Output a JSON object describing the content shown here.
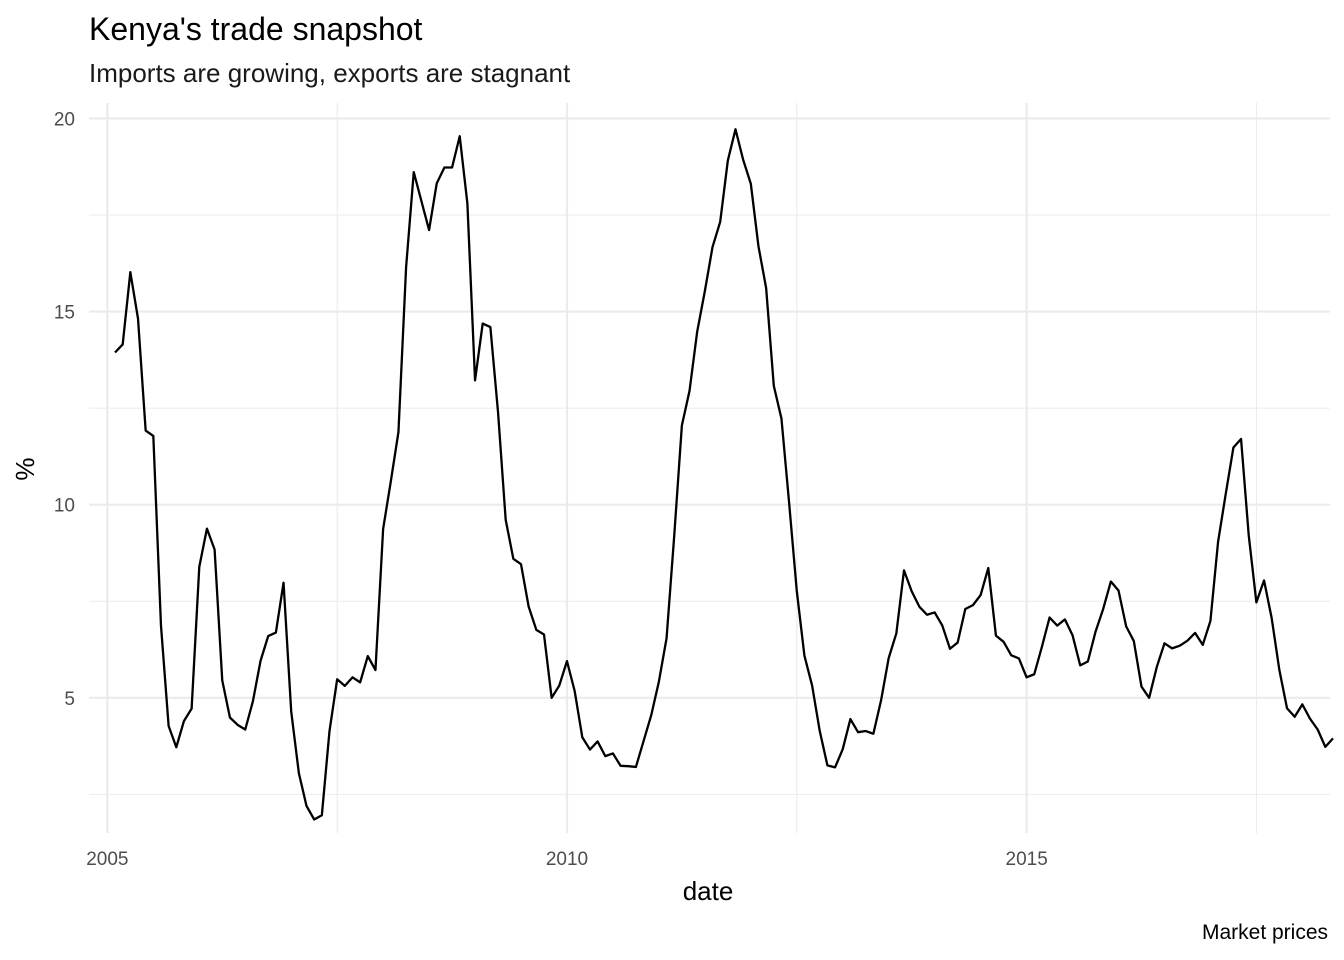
{
  "chart_data": {
    "type": "line",
    "title": "Kenya's trade snapshot",
    "subtitle": "Imports are growing, exports are stagnant",
    "caption": "Market prices",
    "xlabel": "date",
    "ylabel": "%",
    "xlim": [
      2004.8,
      2018.3
    ],
    "ylim": [
      1.5,
      20.4
    ],
    "x_ticks": [
      2005,
      2010,
      2015
    ],
    "x_tick_labels": [
      "2005",
      "2010",
      "2015"
    ],
    "y_ticks": [
      5,
      10,
      15,
      20
    ],
    "y_tick_labels": [
      "5",
      "10",
      "15",
      "20"
    ],
    "grid": true,
    "legend": "none",
    "series": [
      {
        "x_start": 2005.083,
        "x_step": 0.08333,
        "values": [
          13.94,
          14.15,
          16.02,
          14.82,
          11.92,
          11.78,
          6.87,
          4.27,
          3.72,
          4.4,
          4.72,
          8.39,
          9.38,
          8.84,
          5.45,
          4.49,
          4.3,
          4.18,
          4.91,
          5.96,
          6.6,
          6.69,
          7.98,
          4.65,
          3.05,
          2.2,
          1.85,
          1.96,
          4.14,
          5.48,
          5.31,
          5.53,
          5.4,
          6.08,
          5.72,
          9.37,
          10.6,
          11.88,
          16.15,
          18.61,
          17.86,
          17.11,
          18.32,
          18.73,
          18.73,
          19.54,
          17.8,
          13.22,
          14.69,
          14.6,
          12.4,
          9.61,
          8.6,
          8.46,
          7.36,
          6.76,
          6.64,
          5.0,
          5.32,
          5.95,
          5.18,
          3.98,
          3.66,
          3.87,
          3.49,
          3.56,
          3.24,
          3.23,
          3.21,
          3.88,
          4.55,
          5.42,
          6.54,
          9.19,
          12.05,
          12.95,
          14.48,
          15.53,
          16.67,
          17.32,
          18.91,
          19.72,
          18.93,
          18.31,
          16.69,
          15.61,
          13.08,
          12.23,
          10.05,
          7.77,
          6.09,
          5.32,
          4.14,
          3.25,
          3.2,
          3.67,
          4.45,
          4.11,
          4.14,
          4.07,
          4.93,
          6.03,
          6.67,
          8.3,
          7.76,
          7.36,
          7.15,
          7.21,
          6.87,
          6.27,
          6.43,
          7.3,
          7.4,
          7.66,
          8.36,
          6.61,
          6.45,
          6.1,
          6.02,
          5.53,
          5.61,
          6.32,
          7.08,
          6.87,
          7.03,
          6.62,
          5.84,
          5.94,
          6.71,
          7.3,
          8.01,
          7.78,
          6.85,
          6.47,
          5.29,
          5.0,
          5.8,
          6.41,
          6.28,
          6.35,
          6.48,
          6.68,
          6.37,
          6.99,
          9.04,
          10.28,
          11.48,
          11.7,
          9.21,
          7.47,
          8.04,
          7.06,
          5.72,
          4.73,
          4.51,
          4.83,
          4.46,
          4.18,
          3.73,
          3.95
        ]
      }
    ]
  }
}
